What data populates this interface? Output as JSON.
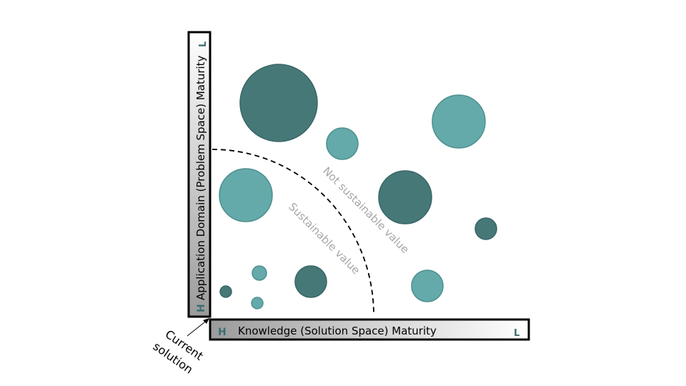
{
  "y_axis": {
    "title": "Application Domain (Problem Space) Maturity",
    "high_label": "H",
    "low_label": "L"
  },
  "x_axis": {
    "title": "Knowledge (Solution Space) Maturity",
    "high_label": "H",
    "low_label": "L"
  },
  "origin_annotation": {
    "line1": "Current",
    "line2": "solution"
  },
  "regions": {
    "inside": "Sustainable value",
    "outside": "Not sustainable value"
  },
  "colors": {
    "dark_teal": "#467878",
    "light_teal": "#64aaaa",
    "region_text": "#a6a6a6",
    "axis_letter": "#3b6e73"
  }
}
